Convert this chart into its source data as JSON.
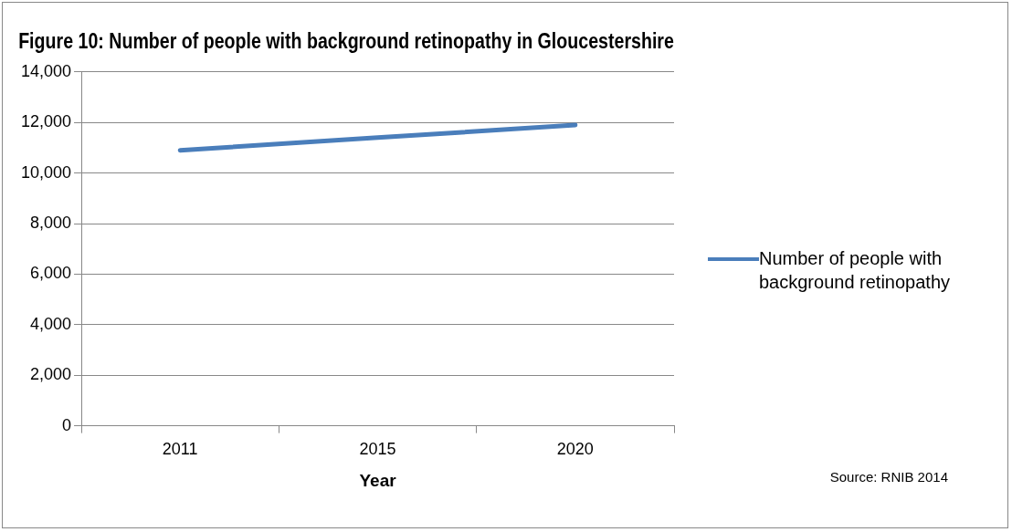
{
  "chart_data": {
    "type": "line",
    "title": "Figure 10: Number of people with background retinopathy in Gloucestershire",
    "xlabel": "Year",
    "categories": [
      "2011",
      "2015",
      "2020"
    ],
    "series": [
      {
        "name": "Number of people with background retinopathy",
        "color": "#4a7ebb",
        "values": [
          10900,
          11400,
          11900
        ]
      }
    ],
    "ylim": [
      0,
      14000
    ],
    "yticks": [
      0,
      {
        "value": 2000,
        "label": "2,000"
      },
      {
        "value": 4000,
        "label": "4,000"
      },
      {
        "value": 6000,
        "label": "6,000"
      },
      {
        "value": 8000,
        "label": "8,000"
      },
      {
        "value": 10000,
        "label": "10,000"
      },
      {
        "value": 12000,
        "label": "12,000"
      },
      {
        "value": 14000,
        "label": "14,000"
      }
    ],
    "grid": "y",
    "legend": "right",
    "marker": "none",
    "line_style": "solid",
    "annotations": [
      "Source: RNIB 2014"
    ]
  }
}
